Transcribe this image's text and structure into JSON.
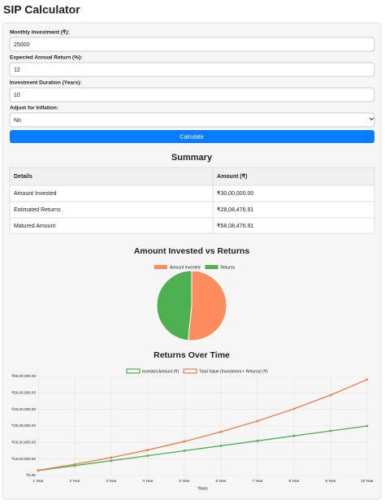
{
  "title": "SIP Calculator",
  "form": {
    "fields": [
      {
        "label": "Monthly Investment (₹):",
        "value": "25000"
      },
      {
        "label": "Expected Annual Return (%):",
        "value": "12"
      },
      {
        "label": "Investment Duration (Years):",
        "value": "10"
      },
      {
        "label": "Adjust for Inflation:",
        "value": "No"
      }
    ],
    "button": "Calculate"
  },
  "summary": {
    "title": "Summary",
    "header": [
      "Details",
      "Amount (₹)"
    ],
    "rows": [
      [
        "Amount Invested",
        "₹30,00,000.00"
      ],
      [
        "Estimated Returns",
        "₹28,08,476.91"
      ],
      [
        "Matured Amount",
        "₹58,08,476.91"
      ]
    ]
  },
  "chart_data": [
    {
      "type": "pie",
      "title": "Amount Invested vs Returns",
      "categories": [
        "Amount Invested",
        "Returns"
      ],
      "values": [
        3000000,
        2808476.91
      ],
      "colors": [
        "#ff8c5e",
        "#4caf50"
      ]
    },
    {
      "type": "line",
      "title": "Returns Over Time",
      "x_label": "Years",
      "categories": [
        "1 Year",
        "2 Year",
        "3 Year",
        "4 Year",
        "5 Year",
        "6 Year",
        "7 Year",
        "8 Year",
        "9 Year",
        "10 Year"
      ],
      "series": [
        {
          "name": "Invested Amount (₹)",
          "color": "#4caf50",
          "values": [
            300000,
            600000,
            900000,
            1200000,
            1500000,
            1800000,
            2100000,
            2400000,
            2700000,
            3000000
          ]
        },
        {
          "name": "Total Value (Investment + Returns) (₹)",
          "color": "#f47c48",
          "values": [
            320233,
            681078,
            1087692,
            1545871,
            2062160,
            2643925,
            3299476,
            4038164,
            4870538,
            5808477
          ]
        }
      ],
      "ylim": [
        0,
        6000000
      ],
      "yticks": [
        {
          "value": 0,
          "label": "₹0.00"
        },
        {
          "value": 1000000,
          "label": "₹10,00,000.00"
        },
        {
          "value": 2000000,
          "label": "₹20,00,000.00"
        },
        {
          "value": 3000000,
          "label": "₹30,00,000.00"
        },
        {
          "value": 4000000,
          "label": "₹40,00,000.00"
        },
        {
          "value": 5000000,
          "label": "₹50,00,000.00"
        },
        {
          "value": 6000000,
          "label": "₹60,00,000.00"
        }
      ],
      "grid": true
    }
  ]
}
